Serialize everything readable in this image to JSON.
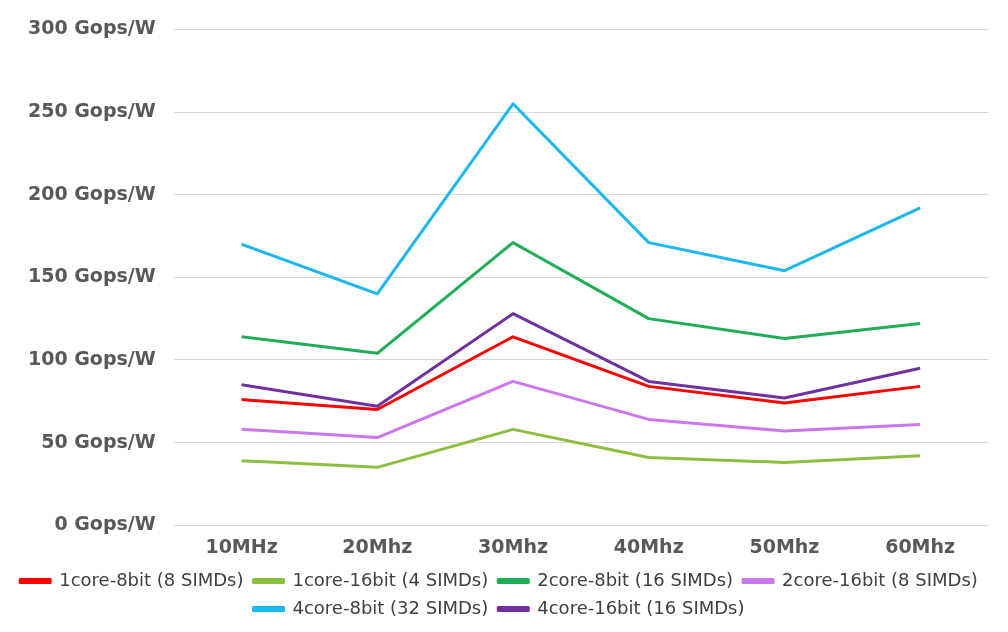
{
  "chart_data": {
    "type": "line",
    "categories": [
      "10MHz",
      "20Mhz",
      "30Mhz",
      "40Mhz",
      "50Mhz",
      "60Mhz"
    ],
    "series": [
      {
        "name": "1core-8bit (8 SIMDs)",
        "color": "#ff0000",
        "values": [
          76,
          70,
          114,
          84,
          74,
          84
        ]
      },
      {
        "name": "1core-16bit (4 SIMDs)",
        "color": "#8cbf3f",
        "values": [
          39,
          35,
          58,
          41,
          38,
          42
        ]
      },
      {
        "name": "2core-8bit (16 SIMDs)",
        "color": "#1fae55",
        "values": [
          114,
          104,
          171,
          125,
          113,
          122
        ]
      },
      {
        "name": "2core-16bit (8 SIMDs)",
        "color": "#cc77ee",
        "values": [
          58,
          53,
          87,
          64,
          57,
          61
        ]
      },
      {
        "name": "4core-8bit (32 SIMDs)",
        "color": "#1ab8ee",
        "values": [
          170,
          140,
          255,
          171,
          154,
          192
        ]
      },
      {
        "name": "4core-16bit (16 SIMDs)",
        "color": "#7030a0",
        "values": [
          85,
          72,
          128,
          87,
          77,
          95
        ]
      }
    ],
    "ylim": [
      0,
      300
    ],
    "yticks": [
      {
        "value": 0,
        "label": "0 Gops/W"
      },
      {
        "value": 50,
        "label": "50 Gops/W"
      },
      {
        "value": 100,
        "label": "100 Gops/W"
      },
      {
        "value": 150,
        "label": "150 Gops/W"
      },
      {
        "value": 200,
        "label": "200 Gops/W"
      },
      {
        "value": 250,
        "label": "250 Gops/W"
      },
      {
        "value": 300,
        "label": "300 Gops/W"
      }
    ],
    "grid": "y",
    "legend": "bottom",
    "marker": "none",
    "line_style": "solid"
  }
}
